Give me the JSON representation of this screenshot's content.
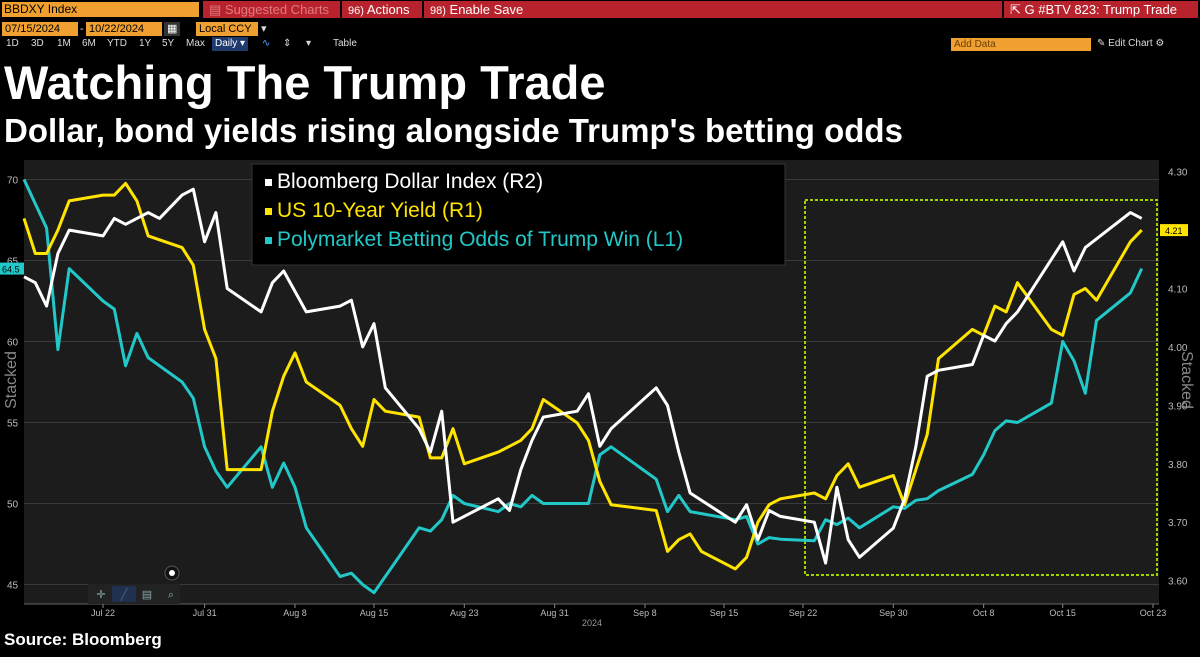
{
  "toolbar": {
    "ticker": "BBDXY Index",
    "suggested_charts": "Suggested Charts",
    "actions": "Actions",
    "actions_num": "96)",
    "enable_save": "Enable Save",
    "enable_save_num": "98)",
    "window_title": "G #BTV 823: Trump Trade",
    "start_date": "07/15/2024",
    "end_date": "10/22/2024",
    "currency": "Local CCY",
    "ranges": [
      "1D",
      "3D",
      "1M",
      "6M",
      "YTD",
      "1Y",
      "5Y",
      "Max"
    ],
    "period": "Daily",
    "table": "Table",
    "add_data": "Add Data",
    "edit_chart": "Edit Chart"
  },
  "title": "Watching The Trump Trade",
  "subtitle": "Dollar, bond yields rising alongside Trump's betting odds",
  "source": "Source: Bloomberg",
  "colors": {
    "background": "#1c1c1c",
    "dollar": "#ffffff",
    "yield": "#ffe400",
    "polymarket": "#22c8c8",
    "highlight_box": "#9fd400",
    "ticker_box": "#f0a030",
    "menu_red": "#b8222c"
  },
  "chart_data": {
    "type": "line",
    "title": "Watching The Trump Trade",
    "subtitle": "Dollar, bond yields rising alongside Trump's betting odds",
    "x_range": [
      "2024-07-15",
      "2024-10-23"
    ],
    "x_ticks": [
      {
        "date": "2024-07-22",
        "label": "Jul 22"
      },
      {
        "date": "2024-07-31",
        "label": "Jul 31"
      },
      {
        "date": "2024-08-08",
        "label": "Aug 8"
      },
      {
        "date": "2024-08-15",
        "label": "Aug 15"
      },
      {
        "date": "2024-08-23",
        "label": "Aug 23"
      },
      {
        "date": "2024-08-31",
        "label": "Aug 31"
      },
      {
        "date": "2024-09-08",
        "label": "Sep 8"
      },
      {
        "date": "2024-09-15",
        "label": "Sep 15"
      },
      {
        "date": "2024-09-22",
        "label": "Sep 22"
      },
      {
        "date": "2024-09-30",
        "label": "Sep 30"
      },
      {
        "date": "2024-10-08",
        "label": "Oct 8"
      },
      {
        "date": "2024-10-15",
        "label": "Oct 15"
      },
      {
        "date": "2024-10-23",
        "label": "Oct 23"
      }
    ],
    "x_year_label": "2024",
    "left_axis": {
      "label": "Stacked",
      "ticks": [
        45,
        50,
        55,
        60,
        65,
        70
      ],
      "range": [
        43.8,
        71.2
      ],
      "current_value_label": "64.5"
    },
    "right_axis": {
      "label": "Stacked",
      "ticks": [
        3.6,
        3.7,
        3.8,
        3.9,
        4.0,
        4.1,
        4.2,
        4.3
      ],
      "tick_labels": [
        "3.60",
        "3.70",
        "3.80",
        "3.90",
        "4.00",
        "4.10",
        "4.20",
        "4.30"
      ],
      "range": [
        3.56,
        4.32
      ],
      "current_value_label": "4.21"
    },
    "legend_position": "top-left",
    "highlight_range": [
      "2024-09-22",
      "2024-10-23"
    ],
    "series": [
      {
        "name": "Bloomberg Dollar Index  (R2)",
        "axis": "right",
        "color": "#ffffff",
        "points": [
          [
            "2024-07-15",
            4.12
          ],
          [
            "2024-07-16",
            4.11
          ],
          [
            "2024-07-17",
            4.07
          ],
          [
            "2024-07-18",
            4.16
          ],
          [
            "2024-07-19",
            4.2
          ],
          [
            "2024-07-22",
            4.19
          ],
          [
            "2024-07-23",
            4.22
          ],
          [
            "2024-07-24",
            4.21
          ],
          [
            "2024-07-25",
            4.22
          ],
          [
            "2024-07-26",
            4.23
          ],
          [
            "2024-07-27",
            4.22
          ],
          [
            "2024-07-29",
            4.26
          ],
          [
            "2024-07-30",
            4.27
          ],
          [
            "2024-07-31",
            4.18
          ],
          [
            "2024-08-01",
            4.23
          ],
          [
            "2024-08-02",
            4.1
          ],
          [
            "2024-08-05",
            4.06
          ],
          [
            "2024-08-06",
            4.11
          ],
          [
            "2024-08-07",
            4.13
          ],
          [
            "2024-08-09",
            4.06
          ],
          [
            "2024-08-12",
            4.07
          ],
          [
            "2024-08-13",
            4.08
          ],
          [
            "2024-08-14",
            4.0
          ],
          [
            "2024-08-15",
            4.04
          ],
          [
            "2024-08-16",
            3.93
          ],
          [
            "2024-08-19",
            3.86
          ],
          [
            "2024-08-20",
            3.82
          ],
          [
            "2024-08-21",
            3.89
          ],
          [
            "2024-08-22",
            3.7
          ],
          [
            "2024-08-26",
            3.74
          ],
          [
            "2024-08-27",
            3.72
          ],
          [
            "2024-08-28",
            3.79
          ],
          [
            "2024-08-29",
            3.84
          ],
          [
            "2024-08-30",
            3.88
          ],
          [
            "2024-09-02",
            3.89
          ],
          [
            "2024-09-03",
            3.92
          ],
          [
            "2024-09-04",
            3.83
          ],
          [
            "2024-09-05",
            3.86
          ],
          [
            "2024-09-09",
            3.93
          ],
          [
            "2024-09-10",
            3.9
          ],
          [
            "2024-09-11",
            3.82
          ],
          [
            "2024-09-12",
            3.75
          ],
          [
            "2024-09-16",
            3.7
          ],
          [
            "2024-09-17",
            3.73
          ],
          [
            "2024-09-18",
            3.67
          ],
          [
            "2024-09-19",
            3.72
          ],
          [
            "2024-09-20",
            3.71
          ],
          [
            "2024-09-23",
            3.7
          ],
          [
            "2024-09-24",
            3.63
          ],
          [
            "2024-09-25",
            3.76
          ],
          [
            "2024-09-26",
            3.67
          ],
          [
            "2024-09-27",
            3.64
          ],
          [
            "2024-09-30",
            3.69
          ],
          [
            "2024-10-01",
            3.74
          ],
          [
            "2024-10-02",
            3.83
          ],
          [
            "2024-10-03",
            3.95
          ],
          [
            "2024-10-04",
            3.96
          ],
          [
            "2024-10-07",
            3.97
          ],
          [
            "2024-10-08",
            4.02
          ],
          [
            "2024-10-09",
            4.01
          ],
          [
            "2024-10-10",
            4.04
          ],
          [
            "2024-10-11",
            4.06
          ],
          [
            "2024-10-14",
            4.15
          ],
          [
            "2024-10-15",
            4.18
          ],
          [
            "2024-10-16",
            4.13
          ],
          [
            "2024-10-17",
            4.17
          ],
          [
            "2024-10-21",
            4.23
          ],
          [
            "2024-10-22",
            4.22
          ]
        ]
      },
      {
        "name": "US 10-Year Yield (R1)",
        "axis": "right",
        "color": "#ffe400",
        "points": [
          [
            "2024-07-15",
            4.22
          ],
          [
            "2024-07-16",
            4.16
          ],
          [
            "2024-07-17",
            4.16
          ],
          [
            "2024-07-18",
            4.2
          ],
          [
            "2024-07-19",
            4.25
          ],
          [
            "2024-07-22",
            4.26
          ],
          [
            "2024-07-23",
            4.26
          ],
          [
            "2024-07-24",
            4.28
          ],
          [
            "2024-07-25",
            4.25
          ],
          [
            "2024-07-26",
            4.19
          ],
          [
            "2024-07-29",
            4.17
          ],
          [
            "2024-07-30",
            4.14
          ],
          [
            "2024-07-31",
            4.03
          ],
          [
            "2024-08-01",
            3.98
          ],
          [
            "2024-08-02",
            3.79
          ],
          [
            "2024-08-05",
            3.79
          ],
          [
            "2024-08-06",
            3.89
          ],
          [
            "2024-08-07",
            3.95
          ],
          [
            "2024-08-08",
            3.99
          ],
          [
            "2024-08-09",
            3.94
          ],
          [
            "2024-08-12",
            3.9
          ],
          [
            "2024-08-13",
            3.86
          ],
          [
            "2024-08-14",
            3.83
          ],
          [
            "2024-08-15",
            3.91
          ],
          [
            "2024-08-16",
            3.89
          ],
          [
            "2024-08-19",
            3.88
          ],
          [
            "2024-08-20",
            3.81
          ],
          [
            "2024-08-21",
            3.81
          ],
          [
            "2024-08-22",
            3.86
          ],
          [
            "2024-08-23",
            3.8
          ],
          [
            "2024-08-26",
            3.82
          ],
          [
            "2024-08-27",
            3.83
          ],
          [
            "2024-08-28",
            3.84
          ],
          [
            "2024-08-29",
            3.86
          ],
          [
            "2024-08-30",
            3.91
          ],
          [
            "2024-09-02",
            3.87
          ],
          [
            "2024-09-03",
            3.84
          ],
          [
            "2024-09-04",
            3.77
          ],
          [
            "2024-09-05",
            3.73
          ],
          [
            "2024-09-09",
            3.72
          ],
          [
            "2024-09-10",
            3.65
          ],
          [
            "2024-09-11",
            3.67
          ],
          [
            "2024-09-12",
            3.68
          ],
          [
            "2024-09-13",
            3.65
          ],
          [
            "2024-09-16",
            3.62
          ],
          [
            "2024-09-17",
            3.64
          ],
          [
            "2024-09-18",
            3.7
          ],
          [
            "2024-09-19",
            3.73
          ],
          [
            "2024-09-20",
            3.74
          ],
          [
            "2024-09-23",
            3.75
          ],
          [
            "2024-09-24",
            3.74
          ],
          [
            "2024-09-25",
            3.78
          ],
          [
            "2024-09-26",
            3.8
          ],
          [
            "2024-09-27",
            3.76
          ],
          [
            "2024-09-30",
            3.78
          ],
          [
            "2024-10-01",
            3.73
          ],
          [
            "2024-10-02",
            3.79
          ],
          [
            "2024-10-03",
            3.85
          ],
          [
            "2024-10-04",
            3.98
          ],
          [
            "2024-10-07",
            4.03
          ],
          [
            "2024-10-08",
            4.02
          ],
          [
            "2024-10-09",
            4.07
          ],
          [
            "2024-10-10",
            4.06
          ],
          [
            "2024-10-11",
            4.11
          ],
          [
            "2024-10-14",
            4.03
          ],
          [
            "2024-10-15",
            4.02
          ],
          [
            "2024-10-16",
            4.09
          ],
          [
            "2024-10-17",
            4.1
          ],
          [
            "2024-10-18",
            4.08
          ],
          [
            "2024-10-21",
            4.18
          ],
          [
            "2024-10-22",
            4.2
          ]
        ]
      },
      {
        "name": "Polymarket Betting Odds of Trump Win (L1)",
        "axis": "left",
        "color": "#22c8c8",
        "points": [
          [
            "2024-07-15",
            70.0
          ],
          [
            "2024-07-16",
            68.5
          ],
          [
            "2024-07-17",
            67.0
          ],
          [
            "2024-07-18",
            59.5
          ],
          [
            "2024-07-19",
            64.5
          ],
          [
            "2024-07-22",
            62.5
          ],
          [
            "2024-07-23",
            62.0
          ],
          [
            "2024-07-24",
            58.5
          ],
          [
            "2024-07-25",
            60.5
          ],
          [
            "2024-07-26",
            59.0
          ],
          [
            "2024-07-29",
            57.5
          ],
          [
            "2024-07-30",
            56.5
          ],
          [
            "2024-07-31",
            53.5
          ],
          [
            "2024-08-01",
            52.0
          ],
          [
            "2024-08-02",
            51.0
          ],
          [
            "2024-08-05",
            53.5
          ],
          [
            "2024-08-06",
            51.0
          ],
          [
            "2024-08-07",
            52.5
          ],
          [
            "2024-08-08",
            51.0
          ],
          [
            "2024-08-09",
            48.5
          ],
          [
            "2024-08-12",
            45.5
          ],
          [
            "2024-08-13",
            45.7
          ],
          [
            "2024-08-14",
            45.0
          ],
          [
            "2024-08-15",
            44.5
          ],
          [
            "2024-08-16",
            45.5
          ],
          [
            "2024-08-19",
            48.5
          ],
          [
            "2024-08-20",
            48.3
          ],
          [
            "2024-08-21",
            49.0
          ],
          [
            "2024-08-22",
            50.5
          ],
          [
            "2024-08-23",
            50.0
          ],
          [
            "2024-08-26",
            49.5
          ],
          [
            "2024-08-27",
            50.0
          ],
          [
            "2024-08-28",
            49.8
          ],
          [
            "2024-08-29",
            50.5
          ],
          [
            "2024-08-30",
            50.0
          ],
          [
            "2024-09-02",
            50.0
          ],
          [
            "2024-09-03",
            50.0
          ],
          [
            "2024-09-04",
            53.0
          ],
          [
            "2024-09-05",
            53.5
          ],
          [
            "2024-09-09",
            51.5
          ],
          [
            "2024-09-10",
            49.5
          ],
          [
            "2024-09-11",
            50.5
          ],
          [
            "2024-09-12",
            49.5
          ],
          [
            "2024-09-16",
            49.0
          ],
          [
            "2024-09-17",
            49.2
          ],
          [
            "2024-09-18",
            47.5
          ],
          [
            "2024-09-19",
            47.9
          ],
          [
            "2024-09-20",
            47.8
          ],
          [
            "2024-09-23",
            47.7
          ],
          [
            "2024-09-24",
            49.0
          ],
          [
            "2024-09-25",
            48.7
          ],
          [
            "2024-09-26",
            49.1
          ],
          [
            "2024-09-27",
            48.5
          ],
          [
            "2024-09-30",
            49.8
          ],
          [
            "2024-10-01",
            49.7
          ],
          [
            "2024-10-02",
            50.2
          ],
          [
            "2024-10-03",
            50.3
          ],
          [
            "2024-10-04",
            50.8
          ],
          [
            "2024-10-07",
            51.8
          ],
          [
            "2024-10-08",
            53.0
          ],
          [
            "2024-10-09",
            54.5
          ],
          [
            "2024-10-10",
            55.1
          ],
          [
            "2024-10-11",
            55.0
          ],
          [
            "2024-10-14",
            56.2
          ],
          [
            "2024-10-15",
            60.0
          ],
          [
            "2024-10-16",
            58.8
          ],
          [
            "2024-10-17",
            56.8
          ],
          [
            "2024-10-18",
            61.3
          ],
          [
            "2024-10-21",
            63.0
          ],
          [
            "2024-10-22",
            64.5
          ]
        ]
      }
    ]
  }
}
